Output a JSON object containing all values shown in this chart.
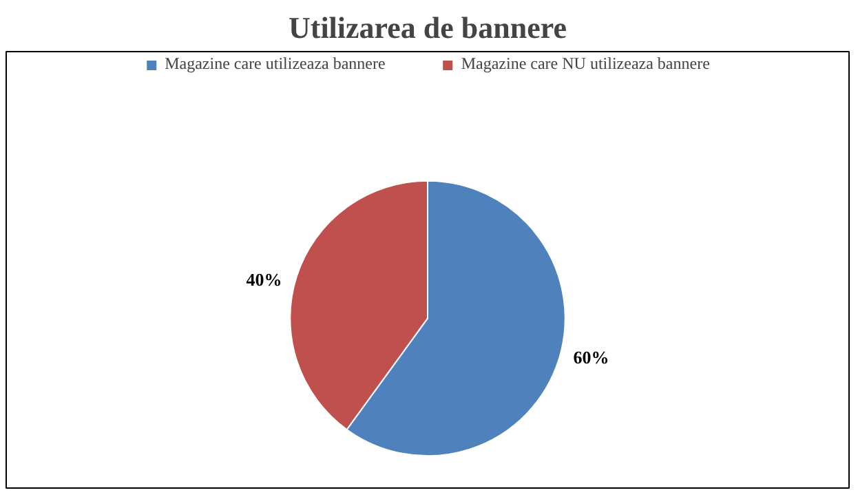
{
  "chart_data": {
    "type": "pie",
    "title": "Utilizarea de bannere",
    "categories": [
      "Magazine care utilizeaza bannere",
      "Magazine care NU utilizeaza bannere"
    ],
    "values": [
      60,
      40
    ],
    "colors": [
      "#4f81bd",
      "#c0504d"
    ],
    "value_labels": [
      "60%",
      "40%"
    ],
    "legend": "top"
  }
}
